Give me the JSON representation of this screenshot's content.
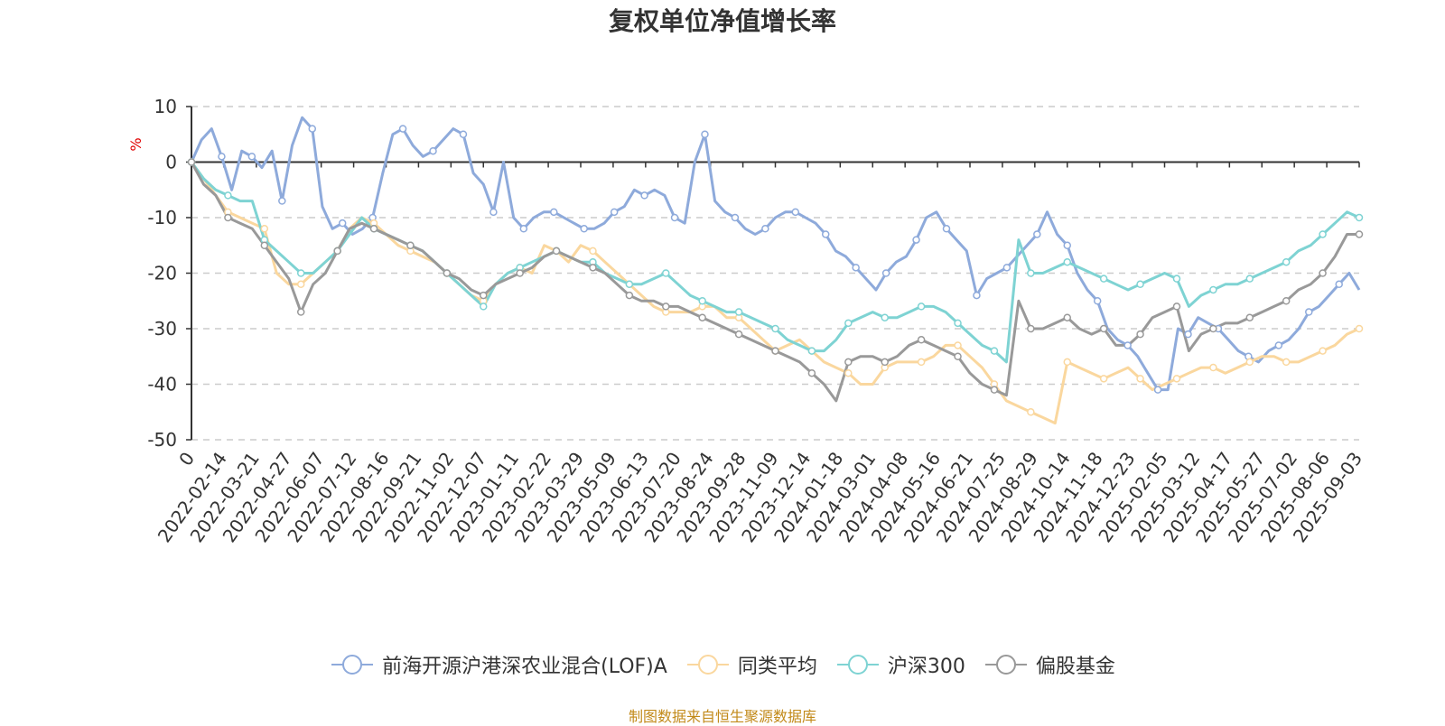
{
  "chart_data": {
    "type": "line",
    "title": "复权单位净值增长率",
    "ylabel": "%",
    "ylim": [
      -50,
      10
    ],
    "yticks": [
      10,
      0,
      -10,
      -20,
      -30,
      -40,
      -50
    ],
    "grid": true,
    "legend_position": "bottom",
    "x_tick_labels": [
      "0",
      "2022-02-14",
      "2022-03-21",
      "2022-04-27",
      "2022-06-07",
      "2022-07-12",
      "2022-08-16",
      "2022-09-21",
      "2022-11-02",
      "2022-12-07",
      "2023-01-11",
      "2023-02-22",
      "2023-03-29",
      "2023-05-09",
      "2023-06-13",
      "2023-07-20",
      "2023-08-24",
      "2023-09-28",
      "2023-11-09",
      "2023-12-14",
      "2024-01-18",
      "2024-03-01",
      "2024-04-08",
      "2024-05-16",
      "2024-06-21",
      "2024-07-25",
      "2024-08-29",
      "2024-10-14",
      "2024-11-18",
      "2024-12-23",
      "2025-02-05",
      "2025-03-12",
      "2025-04-17",
      "2025-05-27",
      "2025-07-02",
      "2025-08-06",
      "2025-09-03"
    ],
    "series": [
      {
        "name": "前海开源沪港深农业混合(LOF)A",
        "color": "#8eaadb",
        "values": [
          0,
          4,
          6,
          1,
          -5,
          2,
          1,
          -1,
          2,
          -7,
          3,
          8,
          6,
          -8,
          -12,
          -11,
          -13,
          -12,
          -10,
          -2,
          5,
          6,
          3,
          1,
          2,
          4,
          6,
          5,
          -2,
          -4,
          -9,
          0,
          -10,
          -12,
          -10,
          -9,
          -9,
          -10,
          -11,
          -12,
          -12,
          -11,
          -9,
          -8,
          -5,
          -6,
          -5,
          -6,
          -10,
          -11,
          0,
          5,
          -7,
          -9,
          -10,
          -12,
          -13,
          -12,
          -10,
          -9,
          -9,
          -10,
          -11,
          -13,
          -16,
          -17,
          -19,
          -21,
          -23,
          -20,
          -18,
          -17,
          -14,
          -10,
          -9,
          -12,
          -14,
          -16,
          -24,
          -21,
          -20,
          -19,
          -17,
          -15,
          -13,
          -9,
          -13,
          -15,
          -20,
          -23,
          -25,
          -30,
          -32,
          -33,
          -35,
          -38,
          -41,
          -41,
          -30,
          -31,
          -28,
          -29,
          -30,
          -32,
          -34,
          -35,
          -36,
          -34,
          -33,
          -32,
          -30,
          -27,
          -26,
          -24,
          -22,
          -20,
          -23
        ]
      },
      {
        "name": "同类平均",
        "color": "#fad79e",
        "values": [
          0,
          -3,
          -6,
          -9,
          -10,
          -11,
          -12,
          -20,
          -22,
          -22,
          -20,
          -18,
          -16,
          -12,
          -10,
          -11,
          -13,
          -15,
          -16,
          -17,
          -18,
          -20,
          -22,
          -24,
          -25,
          -22,
          -20,
          -19,
          -20,
          -15,
          -16,
          -18,
          -15,
          -16,
          -18,
          -20,
          -22,
          -24,
          -26,
          -27,
          -27,
          -27,
          -26,
          -26,
          -28,
          -28,
          -30,
          -32,
          -34,
          -33,
          -32,
          -34,
          -36,
          -37,
          -38,
          -40,
          -40,
          -37,
          -36,
          -36,
          -36,
          -35,
          -33,
          -33,
          -35,
          -37,
          -40,
          -43,
          -44,
          -45,
          -46,
          -47,
          -36,
          -37,
          -38,
          -39,
          -38,
          -37,
          -39,
          -41,
          -40,
          -39,
          -38,
          -37,
          -37,
          -38,
          -37,
          -36,
          -35,
          -35,
          -36,
          -36,
          -35,
          -34,
          -33,
          -31,
          -30
        ]
      },
      {
        "name": "沪深300",
        "color": "#7ed3d3",
        "values": [
          0,
          -3,
          -5,
          -6,
          -7,
          -7,
          -14,
          -16,
          -18,
          -20,
          -20,
          -18,
          -16,
          -13,
          -10,
          -12,
          -13,
          -14,
          -15,
          -16,
          -18,
          -20,
          -22,
          -24,
          -26,
          -22,
          -20,
          -19,
          -18,
          -17,
          -16,
          -17,
          -18,
          -18,
          -20,
          -21,
          -22,
          -22,
          -21,
          -20,
          -22,
          -24,
          -25,
          -26,
          -27,
          -27,
          -28,
          -29,
          -30,
          -32,
          -33,
          -34,
          -34,
          -32,
          -29,
          -28,
          -27,
          -28,
          -28,
          -27,
          -26,
          -26,
          -27,
          -29,
          -31,
          -33,
          -34,
          -36,
          -14,
          -20,
          -20,
          -19,
          -18,
          -19,
          -20,
          -21,
          -22,
          -23,
          -22,
          -21,
          -20,
          -21,
          -26,
          -24,
          -23,
          -22,
          -22,
          -21,
          -20,
          -19,
          -18,
          -16,
          -15,
          -13,
          -11,
          -9,
          -10
        ]
      },
      {
        "name": "偏股基金",
        "color": "#999999",
        "values": [
          0,
          -4,
          -6,
          -10,
          -11,
          -12,
          -15,
          -18,
          -21,
          -27,
          -22,
          -20,
          -16,
          -12,
          -11,
          -12,
          -13,
          -14,
          -15,
          -16,
          -18,
          -20,
          -21,
          -23,
          -24,
          -22,
          -21,
          -20,
          -19,
          -17,
          -16,
          -17,
          -18,
          -19,
          -20,
          -22,
          -24,
          -25,
          -25,
          -26,
          -26,
          -27,
          -28,
          -29,
          -30,
          -31,
          -32,
          -33,
          -34,
          -35,
          -36,
          -38,
          -40,
          -43,
          -36,
          -35,
          -35,
          -36,
          -35,
          -33,
          -32,
          -33,
          -34,
          -35,
          -38,
          -40,
          -41,
          -42,
          -25,
          -30,
          -30,
          -29,
          -28,
          -30,
          -31,
          -30,
          -33,
          -33,
          -31,
          -28,
          -27,
          -26,
          -34,
          -31,
          -30,
          -29,
          -29,
          -28,
          -27,
          -26,
          -25,
          -23,
          -22,
          -20,
          -17,
          -13,
          -13
        ]
      }
    ]
  },
  "legend_items": [
    "前海开源沪港深农业混合(LOF)A",
    "同类平均",
    "沪深300",
    "偏股基金"
  ],
  "source_text": "制图数据来自恒生聚源数据库"
}
